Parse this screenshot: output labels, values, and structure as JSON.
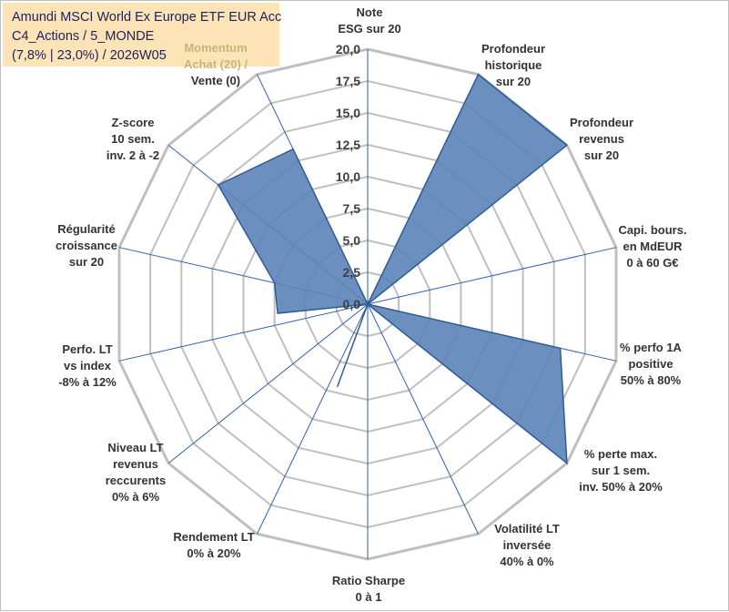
{
  "title": {
    "line1": "Amundi MSCI World Ex Europe ETF EUR Acc",
    "line2": "C4_Actions / 5_MONDE",
    "line3": "(7,8% | 23,0%) / 2026W05"
  },
  "chart_data": {
    "type": "radar",
    "scale_max": 20,
    "rings": 8,
    "ticks": [
      "0,0",
      "2,5",
      "5,0",
      "7,5",
      "10,0",
      "12,5",
      "15,0",
      "17,5",
      "20,0"
    ],
    "grid": true,
    "axes": [
      {
        "label": [
          "Note",
          "ESG sur 20"
        ],
        "value": 0
      },
      {
        "label": [
          "Profondeur",
          "historique",
          "sur 20"
        ],
        "value": 20
      },
      {
        "label": [
          "Profondeur",
          "revenus",
          "sur 20"
        ],
        "value": 20
      },
      {
        "label": [
          "Capi. bours.",
          "en MdEUR",
          "0 à 60 G€"
        ],
        "value": 0
      },
      {
        "label": [
          "% perfo 1A",
          "positive",
          "50% à 80%"
        ],
        "value": 15.5
      },
      {
        "label": [
          "% perte max.",
          "sur 1 sem.",
          "inv. 50% à 20%"
        ],
        "value": 20
      },
      {
        "label": [
          "Volatilité LT",
          "inversée",
          "40% à 0%"
        ],
        "value": 0
      },
      {
        "label": [
          "Ratio Sharpe",
          "0 à 1"
        ],
        "value": 0
      },
      {
        "label": [
          "Rendement LT",
          "0% à 20%"
        ],
        "value": 0
      },
      {
        "label": [
          "Niveau LT",
          "revenus",
          "reccurents",
          "0% à 6%"
        ],
        "value": 0
      },
      {
        "label": [
          "Perfo. LT",
          "vs index",
          "-8% à 12%"
        ],
        "value": 0
      },
      {
        "label": [
          "Régularité",
          "croissance",
          "sur 20"
        ],
        "value": 7.5
      },
      {
        "label": [
          "Z-score",
          "10 sem.",
          "inv. 2 à -2"
        ],
        "value": 15
      },
      {
        "label": [
          "Momentum",
          "Achat (20) /",
          "Vente (0)"
        ],
        "value": 13.5
      }
    ],
    "extra_points": [
      {
        "angle_deg": 264.2,
        "value": 7.1
      },
      {
        "angle_deg": 200.2,
        "value": 6.9
      }
    ],
    "colors": {
      "fill": "#5b84b8",
      "stroke": "#2f5b94",
      "grid": "#bfbfbf",
      "spoke": "#2f5fb0"
    }
  }
}
